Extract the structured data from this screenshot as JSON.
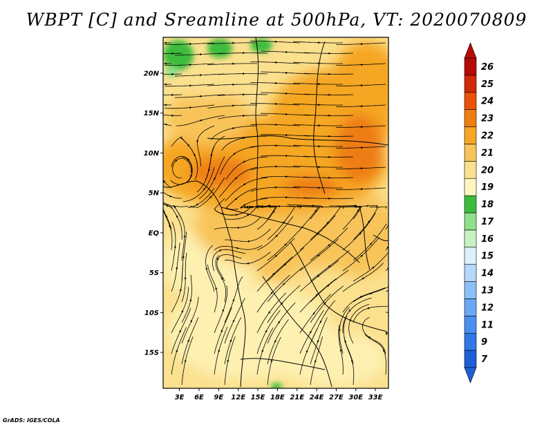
{
  "title": "WBPT [C] and Sreamline at 500hPa, VT: 2020070809",
  "credit": "GrADS: IGES/COLA",
  "map": {
    "lat_ticks": [
      {
        "value": 20,
        "label": "20N"
      },
      {
        "value": 15,
        "label": "15N"
      },
      {
        "value": 10,
        "label": "10N"
      },
      {
        "value": 5,
        "label": "5N"
      },
      {
        "value": 0,
        "label": "EQ"
      },
      {
        "value": -5,
        "label": "5S"
      },
      {
        "value": -10,
        "label": "10S"
      },
      {
        "value": -15,
        "label": "15S"
      }
    ],
    "lon_ticks": [
      {
        "value": 3,
        "label": "3E"
      },
      {
        "value": 6,
        "label": "6E"
      },
      {
        "value": 9,
        "label": "9E"
      },
      {
        "value": 12,
        "label": "12E"
      },
      {
        "value": 15,
        "label": "15E"
      },
      {
        "value": 18,
        "label": "18E"
      },
      {
        "value": 21,
        "label": "21E"
      },
      {
        "value": 24,
        "label": "24E"
      },
      {
        "value": 27,
        "label": "27E"
      },
      {
        "value": 30,
        "label": "30E"
      },
      {
        "value": 33,
        "label": "33E"
      }
    ],
    "lon_range": [
      0.5,
      35
    ],
    "lat_range": [
      -19.5,
      24.5
    ]
  },
  "colorbar": {
    "levels": [
      {
        "label": "7",
        "color": "#1f5fd6"
      },
      {
        "label": "9",
        "color": "#2f78e8"
      },
      {
        "label": "11",
        "color": "#4a90f0"
      },
      {
        "label": "12",
        "color": "#6aa8f4"
      },
      {
        "label": "13",
        "color": "#8ec0f8"
      },
      {
        "label": "14",
        "color": "#b6d8fb"
      },
      {
        "label": "15",
        "color": "#def0fd"
      },
      {
        "label": "16",
        "color": "#c8f2c0"
      },
      {
        "label": "17",
        "color": "#8fe08a"
      },
      {
        "label": "18",
        "color": "#3cbc3c"
      },
      {
        "label": "19",
        "color": "#fdf6c0"
      },
      {
        "label": "20",
        "color": "#fbe08e"
      },
      {
        "label": "21",
        "color": "#f8c45a"
      },
      {
        "label": "22",
        "color": "#f5a623"
      },
      {
        "label": "23",
        "color": "#ee7d12"
      },
      {
        "label": "24",
        "color": "#e8530a"
      },
      {
        "label": "25",
        "color": "#d22a06"
      },
      {
        "label": "26",
        "color": "#b50b04"
      }
    ]
  }
}
